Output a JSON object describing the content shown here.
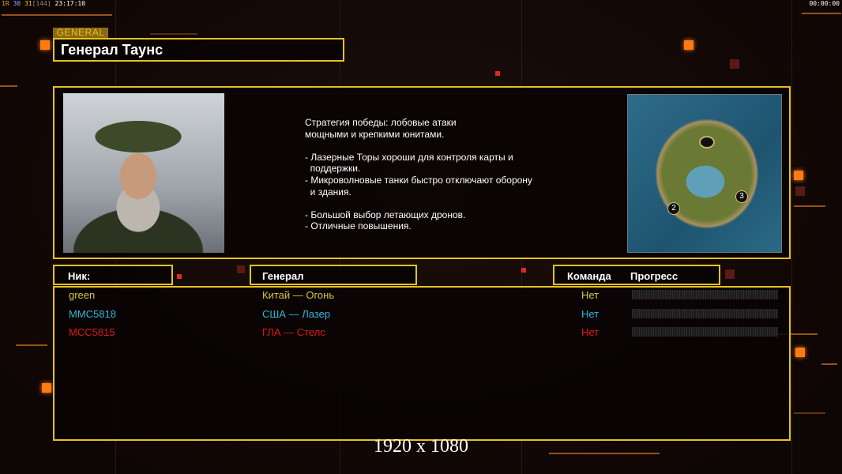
{
  "stats": {
    "a": "1R",
    "b": "30",
    "c": "31",
    "d": "[144]",
    "time": "23:17:10"
  },
  "timer": "00:00:00",
  "header": {
    "tag": "GENERAL",
    "title": "Генерал Таунс"
  },
  "description": [
    "Стратегия победы: лобовые атаки",
    "мощными и крепкими юнитами.",
    "",
    "- Лазерные Торы хороши для контроля карты и",
    "  поддержки.",
    "- Микроволновые танки быстро отключают оборону",
    "  и здания.",
    "",
    "- Большой выбор летающих дронов.",
    "- Отличные повышения."
  ],
  "minimap": {
    "markers": [
      "2",
      "3"
    ]
  },
  "table": {
    "headers": {
      "nick": "Ник:",
      "general": "Генерал",
      "team": "Команда",
      "progress": "Прогресс"
    },
    "rows": [
      {
        "nick": "green",
        "general": "Китай — Огонь",
        "team": "Нет",
        "progress": 0,
        "color": "#d4c73a"
      },
      {
        "nick": "MMC5818",
        "general": "США — Лазер",
        "team": "Нет",
        "progress": 0,
        "color": "#2fb6d8"
      },
      {
        "nick": "MCC5815",
        "general": "ГЛА — Стелс",
        "team": "Нет",
        "progress": 0,
        "color": "#e01818"
      }
    ]
  },
  "resolution": "1920 x 1080",
  "colors": {
    "accent": "#e6c21e",
    "orange": "#ff7a12"
  }
}
